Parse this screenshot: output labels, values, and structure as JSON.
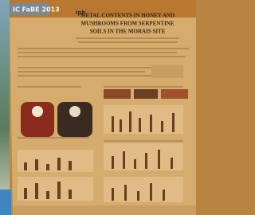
{
  "banner": {
    "event": "IC FaBE 2013",
    "logo": "ipb"
  },
  "poster": {
    "title": [
      "METAL CONTENTS IN HONEY AND",
      "MUSHROOMS FROM SERPENTINE",
      "SOILS IN THE MORAIS SITE"
    ]
  }
}
